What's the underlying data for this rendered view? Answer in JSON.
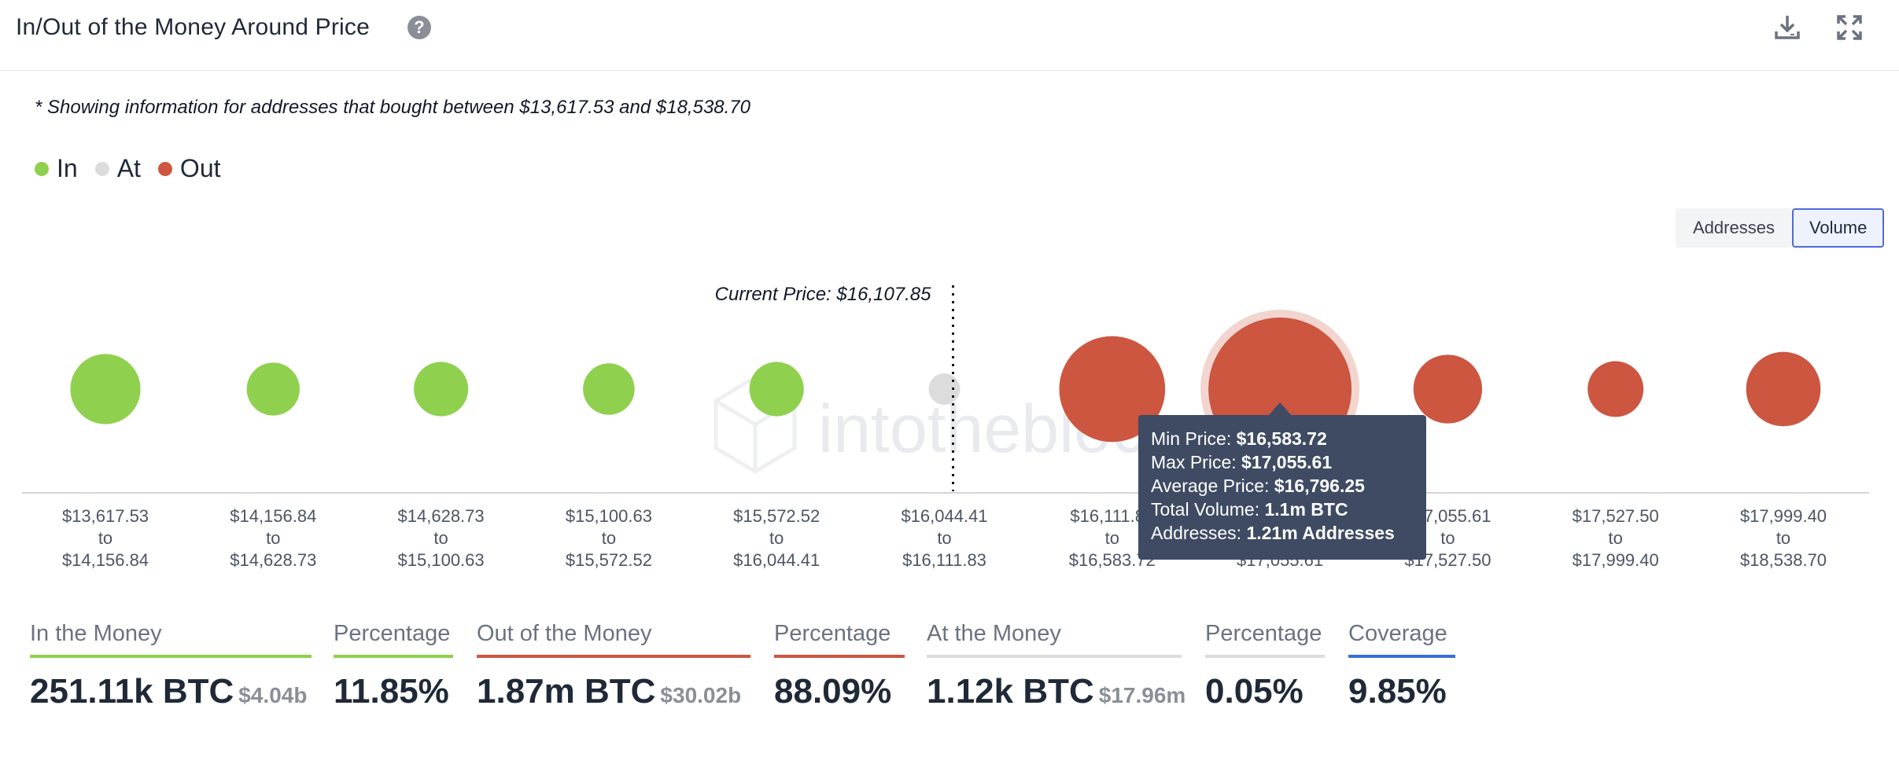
{
  "header": {
    "title": "In/Out of the Money Around Price",
    "help_glyph": "?"
  },
  "note": "* Showing information for addresses that bought between $13,617.53 and $18,538.70",
  "legend": [
    {
      "label": "In",
      "color": "#8fd14f"
    },
    {
      "label": "At",
      "color": "#dcdcdc"
    },
    {
      "label": "Out",
      "color": "#cc5640"
    }
  ],
  "toggle": {
    "addresses": "Addresses",
    "volume": "Volume",
    "selected": "Volume"
  },
  "watermark": "intotheblock",
  "chart_data": {
    "type": "scatter",
    "encoding": "bubble size = total volume",
    "current_price_label": "Current Price: $16,107.85",
    "current_price": 16107.85,
    "categories": [
      {
        "from": "$13,617.53",
        "to": "$14,156.84",
        "status": "in",
        "relative_size": 0.49
      },
      {
        "from": "$14,156.84",
        "to": "$14,628.73",
        "status": "in",
        "relative_size": 0.37
      },
      {
        "from": "$14,628.73",
        "to": "$15,100.63",
        "status": "in",
        "relative_size": 0.38
      },
      {
        "from": "$15,100.63",
        "to": "$15,572.52",
        "status": "in",
        "relative_size": 0.36
      },
      {
        "from": "$15,572.52",
        "to": "$16,044.41",
        "status": "in",
        "relative_size": 0.38
      },
      {
        "from": "$16,044.41",
        "to": "$16,111.83",
        "status": "at",
        "relative_size": 0.22
      },
      {
        "from": "$16,111.83",
        "to": "$16,583.72",
        "status": "out",
        "relative_size": 0.74
      },
      {
        "from": "$16,583.72",
        "to": "$17,055.61",
        "status": "out",
        "relative_size": 1.0
      },
      {
        "from": "$17,055.61",
        "to": "$17,527.50",
        "status": "out",
        "relative_size": 0.48
      },
      {
        "from": "$17,527.50",
        "to": "$17,999.40",
        "status": "out",
        "relative_size": 0.39
      },
      {
        "from": "$17,999.40",
        "to": "$18,538.70",
        "status": "out",
        "relative_size": 0.52
      }
    ],
    "range_connector": "to",
    "colors": {
      "in": "#8fd14f",
      "at": "#dcdcdc",
      "out": "#cc5640"
    },
    "highlighted_index": 7,
    "tooltip": [
      {
        "label": "Min Price:",
        "value": "$16,583.72"
      },
      {
        "label": "Max Price:",
        "value": "$17,055.61"
      },
      {
        "label": "Average Price:",
        "value": "$16,796.25"
      },
      {
        "label": "Total Volume:",
        "value": "1.1m BTC"
      },
      {
        "label": "Addresses:",
        "value": "1.21m Addresses"
      }
    ]
  },
  "stats": [
    {
      "label": "In the Money",
      "value": "251.11k BTC",
      "sub": "$4.04b",
      "bar_color": "#8fd14f"
    },
    {
      "label": "Percentage",
      "value": "11.85%",
      "sub": "",
      "bar_color": "#8fd14f"
    },
    {
      "label": "Out of the Money",
      "value": "1.87m BTC",
      "sub": "$30.02b",
      "bar_color": "#cc5640"
    },
    {
      "label": "Percentage",
      "value": "88.09%",
      "sub": "",
      "bar_color": "#cc5640"
    },
    {
      "label": "At the Money",
      "value": "1.12k BTC",
      "sub": "$17.96m",
      "bar_color": "#dcdcdc"
    },
    {
      "label": "Percentage",
      "value": "0.05%",
      "sub": "",
      "bar_color": "#dcdcdc"
    },
    {
      "label": "Coverage",
      "value": "9.85%",
      "sub": "",
      "bar_color": "#3b6fd8"
    }
  ],
  "icons": {
    "download": "download-icon",
    "expand": "expand-icon",
    "help": "help-icon"
  }
}
